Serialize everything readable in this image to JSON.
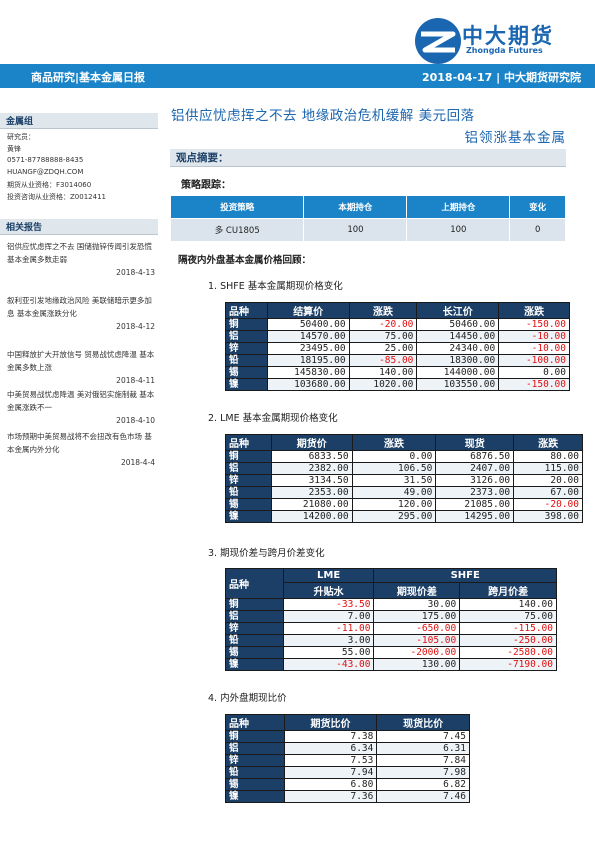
{
  "header": {
    "brand_cn": "中大期货",
    "brand_en": "Zhongda Futures",
    "band_left": "商品研究|基本金属日报",
    "band_right": "2018-04-17 | 中大期货研究院"
  },
  "sidebar": {
    "group_title": "金属组",
    "researcher_label": "研究员：",
    "researcher_name": "黄锋",
    "phone": "0571-87788888-8435",
    "email": "HUANGF@ZDQH.COM",
    "qualification": "期货从业资格：F3014060",
    "consult_qualification": "投资咨询从业资格：Z0012411",
    "reports_title": "相关报告",
    "reports": [
      {
        "title": "铝供应忧虑挥之不去 国储抛锌传闻引发恐慌 基本金属多数走弱",
        "date": "2018-4-13"
      },
      {
        "title": "叙利亚引发地缘政治风险 美联储暗示更多加息 基本金属涨跌分化",
        "date": "2018-4-12"
      },
      {
        "title": "中国释放扩大开放信号 贸易战忧虑降温 基本金属多数上涨",
        "date": "2018-4-11"
      },
      {
        "title": "中美贸易战忧虑降温 美对俄铝实施制裁 基本金属涨跌不一",
        "date": "2018-4-10"
      },
      {
        "title": "市场预期中美贸易战将不会扭改有色市场 基本金属内外分化",
        "date": "2018-4-4"
      }
    ]
  },
  "main": {
    "title_line1": "铝供应忧虑挥之不去 地缘政治危机缓解 美元回落",
    "title_line2": "铝领涨基本金属",
    "view_title": "观点摘要：",
    "strategy_title": "策略跟踪：",
    "strategy_headers": [
      "投资策略",
      "本期持仓",
      "上期持仓",
      "变化"
    ],
    "strategy_row": [
      "多 CU1805",
      "100",
      "100",
      "0"
    ],
    "review_title": "隔夜内外盘基本金属价格回顾：",
    "sections": [
      "1. SHFE 基本金属期现价格变化",
      "2. LME  基本金属期现价格变化",
      "3. 期现价差与跨月价差变化",
      "4. 内外盘期现比价"
    ]
  },
  "shfe": {
    "headers": [
      "品种",
      "结算价",
      "涨跌",
      "长江价",
      "涨跌"
    ],
    "rows": [
      [
        "铜",
        "50400.00",
        "-20.00",
        "50460.00",
        "-150.00"
      ],
      [
        "铝",
        "14570.00",
        "75.00",
        "14450.00",
        "-10.00"
      ],
      [
        "锌",
        "23495.00",
        "25.00",
        "24340.00",
        "-10.00"
      ],
      [
        "铅",
        "18195.00",
        "-85.00",
        "18300.00",
        "-100.00"
      ],
      [
        "锡",
        "145830.00",
        "140.00",
        "144000.00",
        "0.00"
      ],
      [
        "镍",
        "103680.00",
        "1020.00",
        "103550.00",
        "-150.00"
      ]
    ]
  },
  "lme": {
    "headers": [
      "品种",
      "期货价",
      "涨跌",
      "现货",
      "涨跌"
    ],
    "rows": [
      [
        "铜",
        "6833.50",
        "0.00",
        "6876.50",
        "80.00"
      ],
      [
        "铝",
        "2382.00",
        "106.50",
        "2407.00",
        "115.00"
      ],
      [
        "锌",
        "3134.50",
        "31.50",
        "3126.00",
        "20.00"
      ],
      [
        "铅",
        "2353.00",
        "49.00",
        "2373.00",
        "67.00"
      ],
      [
        "锡",
        "21080.00",
        "120.00",
        "21085.00",
        "-20.00"
      ],
      [
        "镍",
        "14200.00",
        "295.00",
        "14295.00",
        "398.00"
      ]
    ]
  },
  "spread": {
    "corner": "品种",
    "group_lme": "LME",
    "group_shfe": "SHFE",
    "headers": [
      "升贴水",
      "期现价差",
      "跨月价差"
    ],
    "rows": [
      [
        "铜",
        "-33.50",
        "30.00",
        "140.00"
      ],
      [
        "铝",
        "7.00",
        "175.00",
        "75.00"
      ],
      [
        "锌",
        "-11.00",
        "-650.00",
        "-115.00"
      ],
      [
        "铅",
        "3.00",
        "-105.00",
        "-250.00"
      ],
      [
        "锡",
        "55.00",
        "-2000.00",
        "-2580.00"
      ],
      [
        "镍",
        "-43.00",
        "130.00",
        "-7190.00"
      ]
    ]
  },
  "ratio": {
    "headers": [
      "品种",
      "期货比价",
      "现货比价"
    ],
    "rows": [
      [
        "铜",
        "7.38",
        "7.45"
      ],
      [
        "铝",
        "6.34",
        "6.31"
      ],
      [
        "锌",
        "7.53",
        "7.84"
      ],
      [
        "铅",
        "7.94",
        "7.98"
      ],
      [
        "锡",
        "6.80",
        "6.82"
      ],
      [
        "镍",
        "7.36",
        "7.46"
      ]
    ]
  },
  "colors": {
    "brand_blue": "#1b66b0",
    "band_blue": "#1b84c8",
    "header_navy": "#1b3f66",
    "negative_red": "#e01010"
  }
}
